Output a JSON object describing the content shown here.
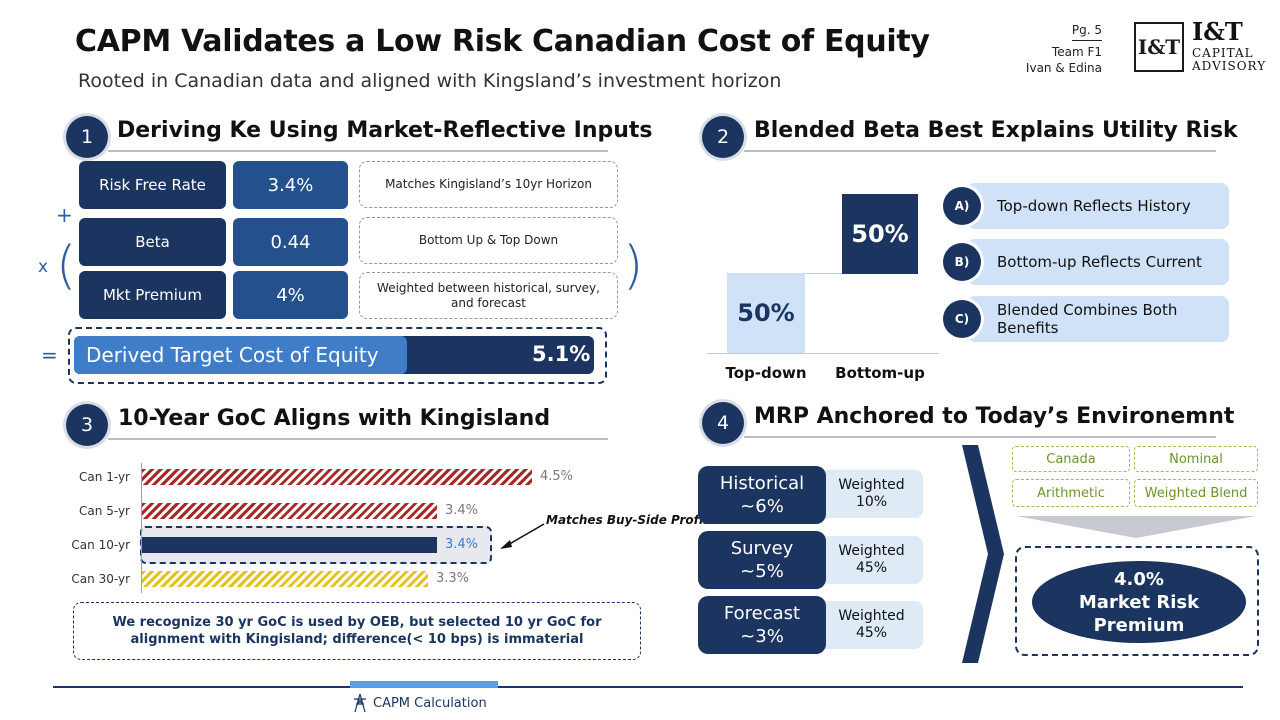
{
  "header": {
    "title": "CAPM Validates a Low Risk Canadian Cost of Equity",
    "subtitle": "Rooted in Canadian data and aligned with Kingsland’s investment horizon",
    "page": "Pg. 5",
    "team": "Team F1",
    "members": "Ivan & Edina",
    "logo_mark": "I&T",
    "logo_name": "I&T",
    "logo_line2": "CAPITAL",
    "logo_line3": "ADVISORY"
  },
  "section1": {
    "number": "1",
    "title": "Deriving Ke Using Market-Reflective Inputs",
    "plus": "+",
    "times": "x",
    "open_paren": "(",
    "close_paren": ")",
    "equals": "=",
    "rows": [
      {
        "label": "Risk Free Rate",
        "value": "3.4%",
        "note": "Matches Kingisland’s 10yr Horizon"
      },
      {
        "label": "Beta",
        "value": "0.44",
        "note": "Bottom Up & Top Down"
      },
      {
        "label": "Mkt Premium",
        "value": "4%",
        "note": "Weighted between historical, survey, and forecast"
      }
    ],
    "result_label": "Derived Target Cost of Equity",
    "result_value": "5.1%"
  },
  "section2": {
    "number": "2",
    "title": "Blended Beta Best Explains Utility Risk",
    "bars": [
      {
        "label": "Top-down",
        "value": "50%"
      },
      {
        "label": "Bottom-up",
        "value": "50%"
      }
    ],
    "points": [
      {
        "badge": "A)",
        "text": "Top-down Reflects History"
      },
      {
        "badge": "B)",
        "text": "Bottom-up Reflects Current"
      },
      {
        "badge": "C)",
        "text": "Blended Combines Both Benefits"
      }
    ]
  },
  "section3": {
    "number": "3",
    "title": "10-Year GoC Aligns with Kingisland",
    "chart_data": {
      "type": "bar",
      "orientation": "horizontal",
      "categories": [
        "Can 1-yr",
        "Can 5-yr",
        "Can 10-yr",
        "Can 30-yr"
      ],
      "values": [
        4.5,
        3.4,
        3.4,
        3.3
      ],
      "value_labels": [
        "4.5%",
        "3.4%",
        "3.4%",
        "3.3%"
      ],
      "colors": [
        "#a52a2a",
        "#a52a2a",
        "#1b3560",
        "#e6c21e"
      ],
      "highlight": "Can 10-yr",
      "annotation": "Matches Buy-Side Profile",
      "grid": false
    },
    "note": "We recognize 30 yr GoC is used by OEB, but selected 10 yr GoC for alignment with Kingisland; difference(< 10 bps) is immaterial"
  },
  "section4": {
    "number": "4",
    "title": "MRP Anchored to Today’s Environemnt",
    "sources": [
      {
        "label_line1": "Historical",
        "label_line2": "~6%",
        "weight_line1": "Weighted",
        "weight_line2": "10%"
      },
      {
        "label_line1": "Survey",
        "label_line2": "~5%",
        "weight_line1": "Weighted",
        "weight_line2": "45%"
      },
      {
        "label_line1": "Forecast",
        "label_line2": "~3%",
        "weight_line1": "Weighted",
        "weight_line2": "45%"
      }
    ],
    "tags": [
      "Canada",
      "Nominal",
      "Arithmetic",
      "Weighted Blend"
    ],
    "result_value": "4.0%",
    "result_line2": "Market Risk",
    "result_line3": "Premium"
  },
  "footer": {
    "label": "CAPM Calculation",
    "icon": "transmission-tower-icon"
  },
  "colors": {
    "navy": "#1b3560",
    "blue": "#24518e",
    "light_blue": "#cfe2f7",
    "accent_blue": "#3f7dc8",
    "green": "#9bbd52",
    "red": "#a52a2a",
    "yellow": "#e6c21e"
  }
}
